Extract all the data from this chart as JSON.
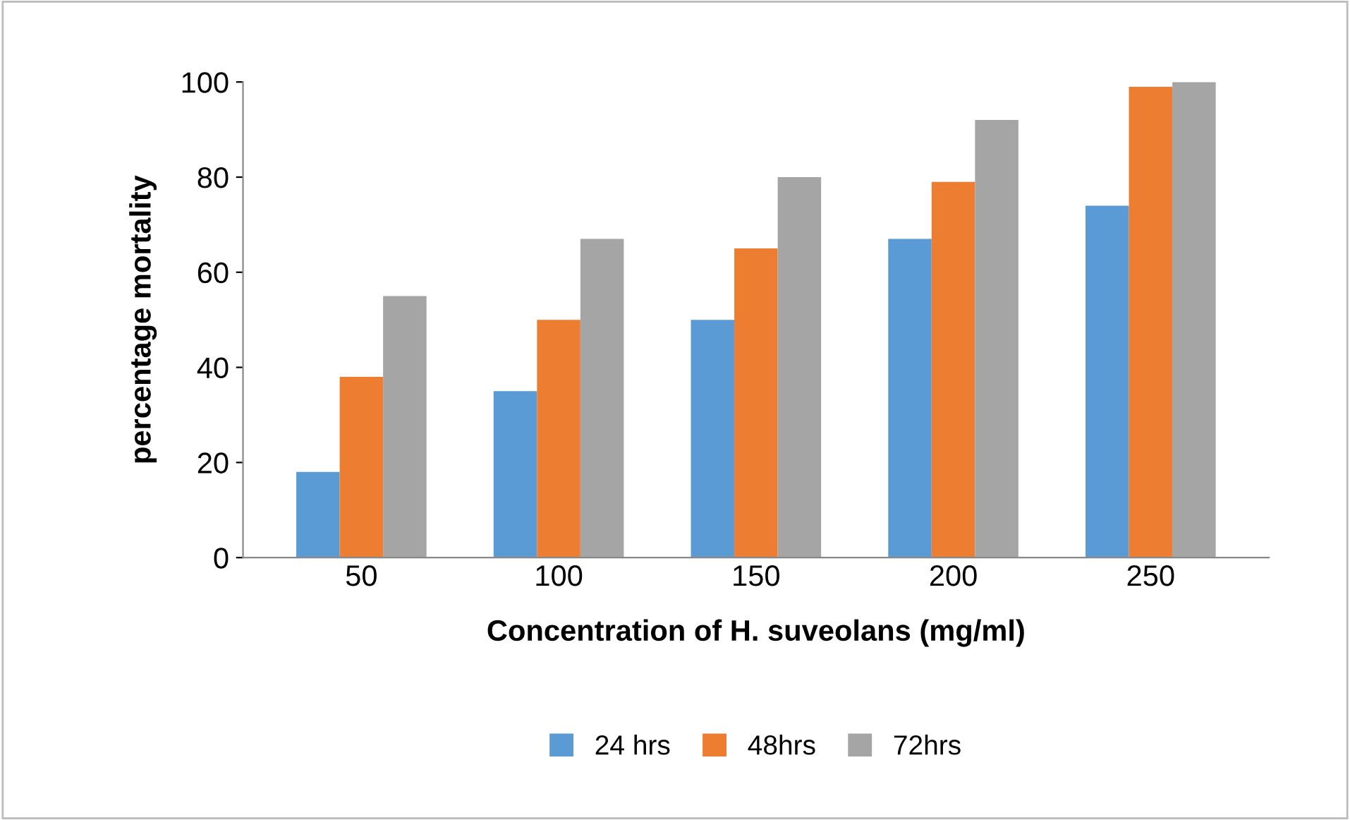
{
  "chart_data": {
    "type": "bar",
    "xlabel": "Concentration of H. suveolans (mg/ml)",
    "ylabel": "percentage mortality",
    "categories": [
      "50",
      "100",
      "150",
      "200",
      "250"
    ],
    "series": [
      {
        "name": "24 hrs",
        "color": "#5b9bd5",
        "values": [
          18,
          35,
          50,
          67,
          74
        ]
      },
      {
        "name": "48hrs",
        "color": "#ed7d31",
        "values": [
          38,
          50,
          65,
          79,
          99
        ]
      },
      {
        "name": "72hrs",
        "color": "#a5a5a5",
        "values": [
          55,
          67,
          80,
          92,
          100
        ]
      }
    ],
    "ylim": [
      0,
      100
    ],
    "yticks": [
      0,
      20,
      40,
      60,
      80,
      100
    ],
    "grid": false,
    "legend": "bottom"
  }
}
